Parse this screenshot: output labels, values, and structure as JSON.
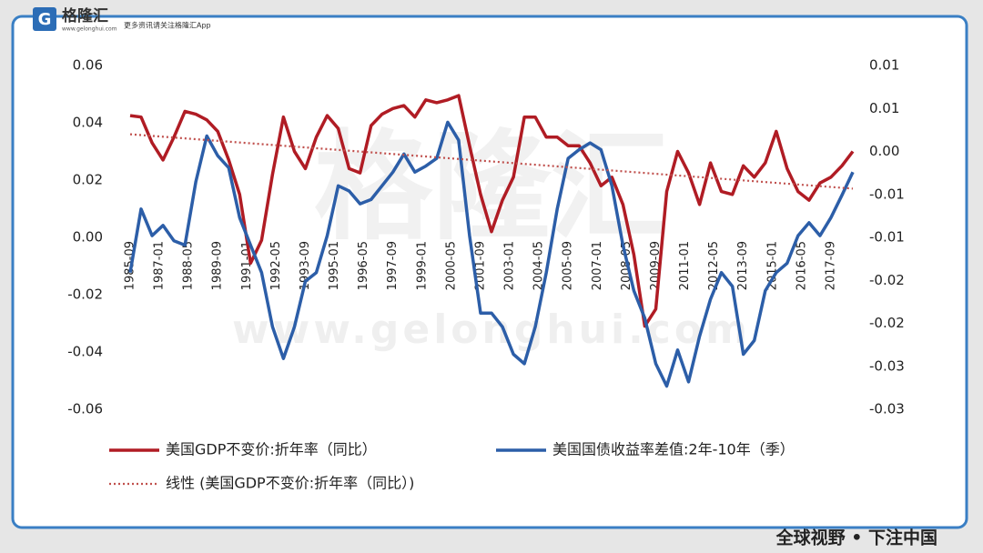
{
  "header": {
    "logo_mark": "G",
    "brand": "格隆汇",
    "url": "www.gelonghui.com",
    "slogan": "更多资讯请关注格隆汇App"
  },
  "watermark": {
    "brand": "格隆汇",
    "url": "www.gelonghui.com"
  },
  "footer": {
    "tagline": "全球视野 • 下注中国"
  },
  "chart_data": {
    "type": "line",
    "x": [
      "1985-09",
      "1986-03",
      "1986-09",
      "1987-03",
      "1987-09",
      "1988-03",
      "1988-09",
      "1989-03",
      "1989-09",
      "1990-03",
      "1990-09",
      "1991-03",
      "1991-09",
      "1992-03",
      "1992-09",
      "1993-03",
      "1993-09",
      "1994-03",
      "1994-09",
      "1995-03",
      "1995-09",
      "1996-03",
      "1996-09",
      "1997-03",
      "1997-09",
      "1998-03",
      "1998-09",
      "1999-03",
      "1999-09",
      "2000-03",
      "2000-09",
      "2001-03",
      "2001-09",
      "2002-03",
      "2002-09",
      "2003-03",
      "2003-09",
      "2004-03",
      "2004-09",
      "2005-03",
      "2005-09",
      "2006-03",
      "2006-09",
      "2007-03",
      "2007-09",
      "2008-03",
      "2008-09",
      "2009-03",
      "2009-09",
      "2010-03",
      "2010-09",
      "2011-03",
      "2011-09",
      "2012-03",
      "2012-09",
      "2013-03",
      "2013-09",
      "2014-03",
      "2014-09",
      "2015-03",
      "2015-09",
      "2016-03",
      "2016-09",
      "2017-03",
      "2017-09",
      "2018-03",
      "2018-09"
    ],
    "xlim": [
      "1985-09",
      "2018-09"
    ],
    "xticks": [
      "1985-09",
      "1987-01",
      "1988-05",
      "1989-09",
      "1991-01",
      "1992-05",
      "1993-09",
      "1995-01",
      "1996-05",
      "1997-09",
      "1999-01",
      "2000-05",
      "2001-09",
      "2003-01",
      "2004-05",
      "2005-09",
      "2007-01",
      "2008-05",
      "2009-09",
      "2011-01",
      "2012-05",
      "2013-09",
      "2015-01",
      "2016-05",
      "2017-09"
    ],
    "ylim": [
      -0.06,
      0.06
    ],
    "yticks": [
      0.06,
      0.04,
      0.02,
      {
        "value": 0,
        "label": "0.00"
      },
      -0.02,
      -0.04,
      -0.06
    ],
    "y2lim": [
      -0.03,
      0.01
    ],
    "y2ticks": [
      {
        "value": 0.01,
        "label": "0.01"
      },
      {
        "value": 0.005,
        "label": "0.01"
      },
      {
        "value": 0,
        "label": "0.00"
      },
      {
        "value": -0.005,
        "label": "-0.01"
      },
      {
        "value": -0.01,
        "label": "-0.01"
      },
      {
        "value": -0.015,
        "label": "-0.02"
      },
      {
        "value": -0.02,
        "label": "-0.02"
      },
      {
        "value": -0.025,
        "label": "-0.03"
      },
      {
        "value": -0.03,
        "label": "-0.03"
      }
    ],
    "series": [
      {
        "name": "美国GDP不变价:折年率（同比）",
        "color": "#b01c24",
        "values": [
          0.0425,
          0.042,
          0.033,
          0.027,
          0.035,
          0.044,
          0.043,
          0.041,
          0.037,
          0.027,
          0.015,
          -0.009,
          -0.001,
          0.022,
          0.042,
          0.03,
          0.024,
          0.035,
          0.0425,
          0.038,
          0.024,
          0.0225,
          0.039,
          0.043,
          0.045,
          0.046,
          0.042,
          0.048,
          0.047,
          0.048,
          0.0495,
          0.032,
          0.015,
          0.002,
          0.013,
          0.021,
          0.042,
          0.042,
          0.035,
          0.035,
          0.032,
          0.032,
          0.026,
          0.018,
          0.021,
          0.0115,
          -0.006,
          -0.031,
          -0.025,
          0.016,
          0.03,
          0.0225,
          0.0115,
          0.026,
          0.016,
          0.015,
          0.025,
          0.021,
          0.026,
          0.037,
          0.024,
          0.016,
          0.013,
          0.019,
          0.021,
          0.025,
          0.03
        ]
      },
      {
        "name": "美国国债收益率差值:2年-10年（季）",
        "color": "#2c5ea8",
        "axis": "y2",
        "values": [
          -0.0141,
          -0.0067,
          -0.0098,
          -0.0086,
          -0.0104,
          -0.0109,
          -0.0035,
          0.0018,
          -0.0005,
          -0.0019,
          -0.0077,
          -0.0109,
          -0.0141,
          -0.0204,
          -0.0241,
          -0.0204,
          -0.0151,
          -0.0141,
          -0.0098,
          -0.004,
          -0.0046,
          -0.0061,
          -0.0056,
          -0.004,
          -0.0024,
          -0.0003,
          -0.0024,
          -0.0017,
          -0.0008,
          0.0034,
          0.0013,
          -0.0098,
          -0.0188,
          -0.0188,
          -0.0204,
          -0.0236,
          -0.0247,
          -0.0204,
          -0.0141,
          -0.0067,
          -0.0008,
          0.0002,
          0.001,
          0.0002,
          -0.004,
          -0.0109,
          -0.0162,
          -0.0194,
          -0.0247,
          -0.0273,
          -0.0231,
          -0.0268,
          -0.0215,
          -0.0172,
          -0.0141,
          -0.0157,
          -0.0236,
          -0.022,
          -0.0162,
          -0.0141,
          -0.013,
          -0.0098,
          -0.0083,
          -0.0098,
          -0.0077,
          -0.0051,
          -0.0024
        ]
      },
      {
        "name": "线性 (美国GDP不变价:折年率（同比）)",
        "color": "#c0504d",
        "style": "dotted",
        "x": [
          "1985-09",
          "2018-09"
        ],
        "values": [
          0.036,
          0.017
        ]
      }
    ]
  }
}
